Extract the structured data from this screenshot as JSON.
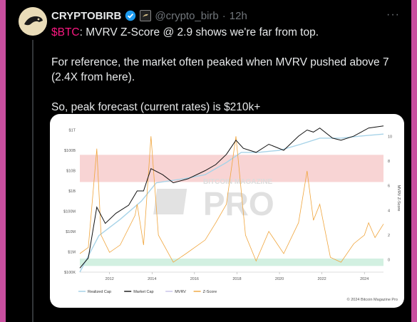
{
  "tweet": {
    "author_name": "CRYPTOBIRB",
    "handle": "@crypto_birb",
    "separator": "·",
    "time": "12h",
    "more_label": "···",
    "cashtag": "$BTC",
    "line1_rest": ": MVRV Z-Score @ 2.9 shows we're far from top.",
    "line2": "For reference, the market often peaked when MVRV pushed above 7 (2.4X from here).",
    "line3": "So, peak forecast (current rates) is $210k+"
  },
  "chart_data": {
    "type": "line",
    "watermark_top": "BITCOIN MAGAZINE",
    "watermark_big": "PRO",
    "copyright": "© 2024 Bitcoin Magazine Pro",
    "y_left_ticks": [
      "$1T",
      "$100B",
      "$10B",
      "$1B",
      "$100M",
      "$10M",
      "$1M",
      "$100K"
    ],
    "y_right_ticks": [
      "10",
      "8",
      "6",
      "4",
      "2",
      "0"
    ],
    "y_right_label": "MVRV Z-Score",
    "x_ticks": [
      "2012",
      "2014",
      "2016",
      "2018",
      "2020",
      "2022",
      "2024"
    ],
    "x_range": [
      2010.6,
      2024.9
    ],
    "legend": [
      "Realized Cap",
      "Market Cap",
      "MVRV",
      "Z-Score"
    ],
    "colors": {
      "realized_cap": "#a7d3e8",
      "market_cap": "#111111",
      "mvrv": "#c8c2e8",
      "zscore": "#f0a53c",
      "red_band": "#f5c6c6",
      "green_band": "#cdeede"
    },
    "series": [
      {
        "name": "Market Cap",
        "log10_usd": [
          [
            2010.6,
            5.2
          ],
          [
            2011.0,
            5.7
          ],
          [
            2011.4,
            8.2
          ],
          [
            2011.8,
            7.4
          ],
          [
            2012.3,
            7.9
          ],
          [
            2012.9,
            8.3
          ],
          [
            2013.3,
            9.0
          ],
          [
            2013.6,
            9.0
          ],
          [
            2013.95,
            10.1
          ],
          [
            2014.5,
            9.8
          ],
          [
            2015.0,
            9.4
          ],
          [
            2015.7,
            9.6
          ],
          [
            2016.5,
            10.0
          ],
          [
            2017.0,
            10.3
          ],
          [
            2017.5,
            10.8
          ],
          [
            2017.95,
            11.5
          ],
          [
            2018.3,
            11.1
          ],
          [
            2018.9,
            10.9
          ],
          [
            2019.5,
            11.3
          ],
          [
            2020.2,
            11.0
          ],
          [
            2020.9,
            11.7
          ],
          [
            2021.3,
            12.0
          ],
          [
            2021.6,
            11.9
          ],
          [
            2021.9,
            12.1
          ],
          [
            2022.5,
            11.6
          ],
          [
            2022.9,
            11.5
          ],
          [
            2023.5,
            11.7
          ],
          [
            2024.2,
            12.1
          ],
          [
            2024.9,
            12.2
          ]
        ]
      },
      {
        "name": "Realized Cap",
        "log10_usd": [
          [
            2010.6,
            5.0
          ],
          [
            2011.5,
            6.8
          ],
          [
            2012.5,
            7.6
          ],
          [
            2013.5,
            8.5
          ],
          [
            2014.2,
            9.4
          ],
          [
            2015.5,
            9.6
          ],
          [
            2016.5,
            9.8
          ],
          [
            2017.5,
            10.4
          ],
          [
            2018.2,
            10.9
          ],
          [
            2019.0,
            10.9
          ],
          [
            2020.0,
            11.0
          ],
          [
            2021.0,
            11.3
          ],
          [
            2021.9,
            11.6
          ],
          [
            2022.9,
            11.6
          ],
          [
            2023.8,
            11.7
          ],
          [
            2024.9,
            11.8
          ]
        ]
      },
      {
        "name": "Z-Score",
        "values": [
          [
            2010.6,
            0.5
          ],
          [
            2011.0,
            1.0
          ],
          [
            2011.4,
            9.0
          ],
          [
            2011.6,
            2.0
          ],
          [
            2012.0,
            0.6
          ],
          [
            2012.5,
            1.2
          ],
          [
            2013.2,
            3.6
          ],
          [
            2013.3,
            4.5
          ],
          [
            2013.6,
            1.2
          ],
          [
            2013.95,
            10.0
          ],
          [
            2014.3,
            2.0
          ],
          [
            2015.0,
            -0.2
          ],
          [
            2015.6,
            0.5
          ],
          [
            2016.5,
            1.6
          ],
          [
            2017.0,
            3.0
          ],
          [
            2017.5,
            4.5
          ],
          [
            2017.95,
            10.0
          ],
          [
            2018.4,
            2.0
          ],
          [
            2018.9,
            -0.1
          ],
          [
            2019.5,
            2.3
          ],
          [
            2020.2,
            0.5
          ],
          [
            2020.9,
            3.0
          ],
          [
            2021.3,
            7.2
          ],
          [
            2021.6,
            3.2
          ],
          [
            2021.9,
            4.5
          ],
          [
            2022.4,
            0.2
          ],
          [
            2022.9,
            -0.2
          ],
          [
            2023.5,
            1.3
          ],
          [
            2024.0,
            2.0
          ],
          [
            2024.2,
            3.0
          ],
          [
            2024.5,
            1.8
          ],
          [
            2024.9,
            2.9
          ]
        ]
      }
    ]
  }
}
